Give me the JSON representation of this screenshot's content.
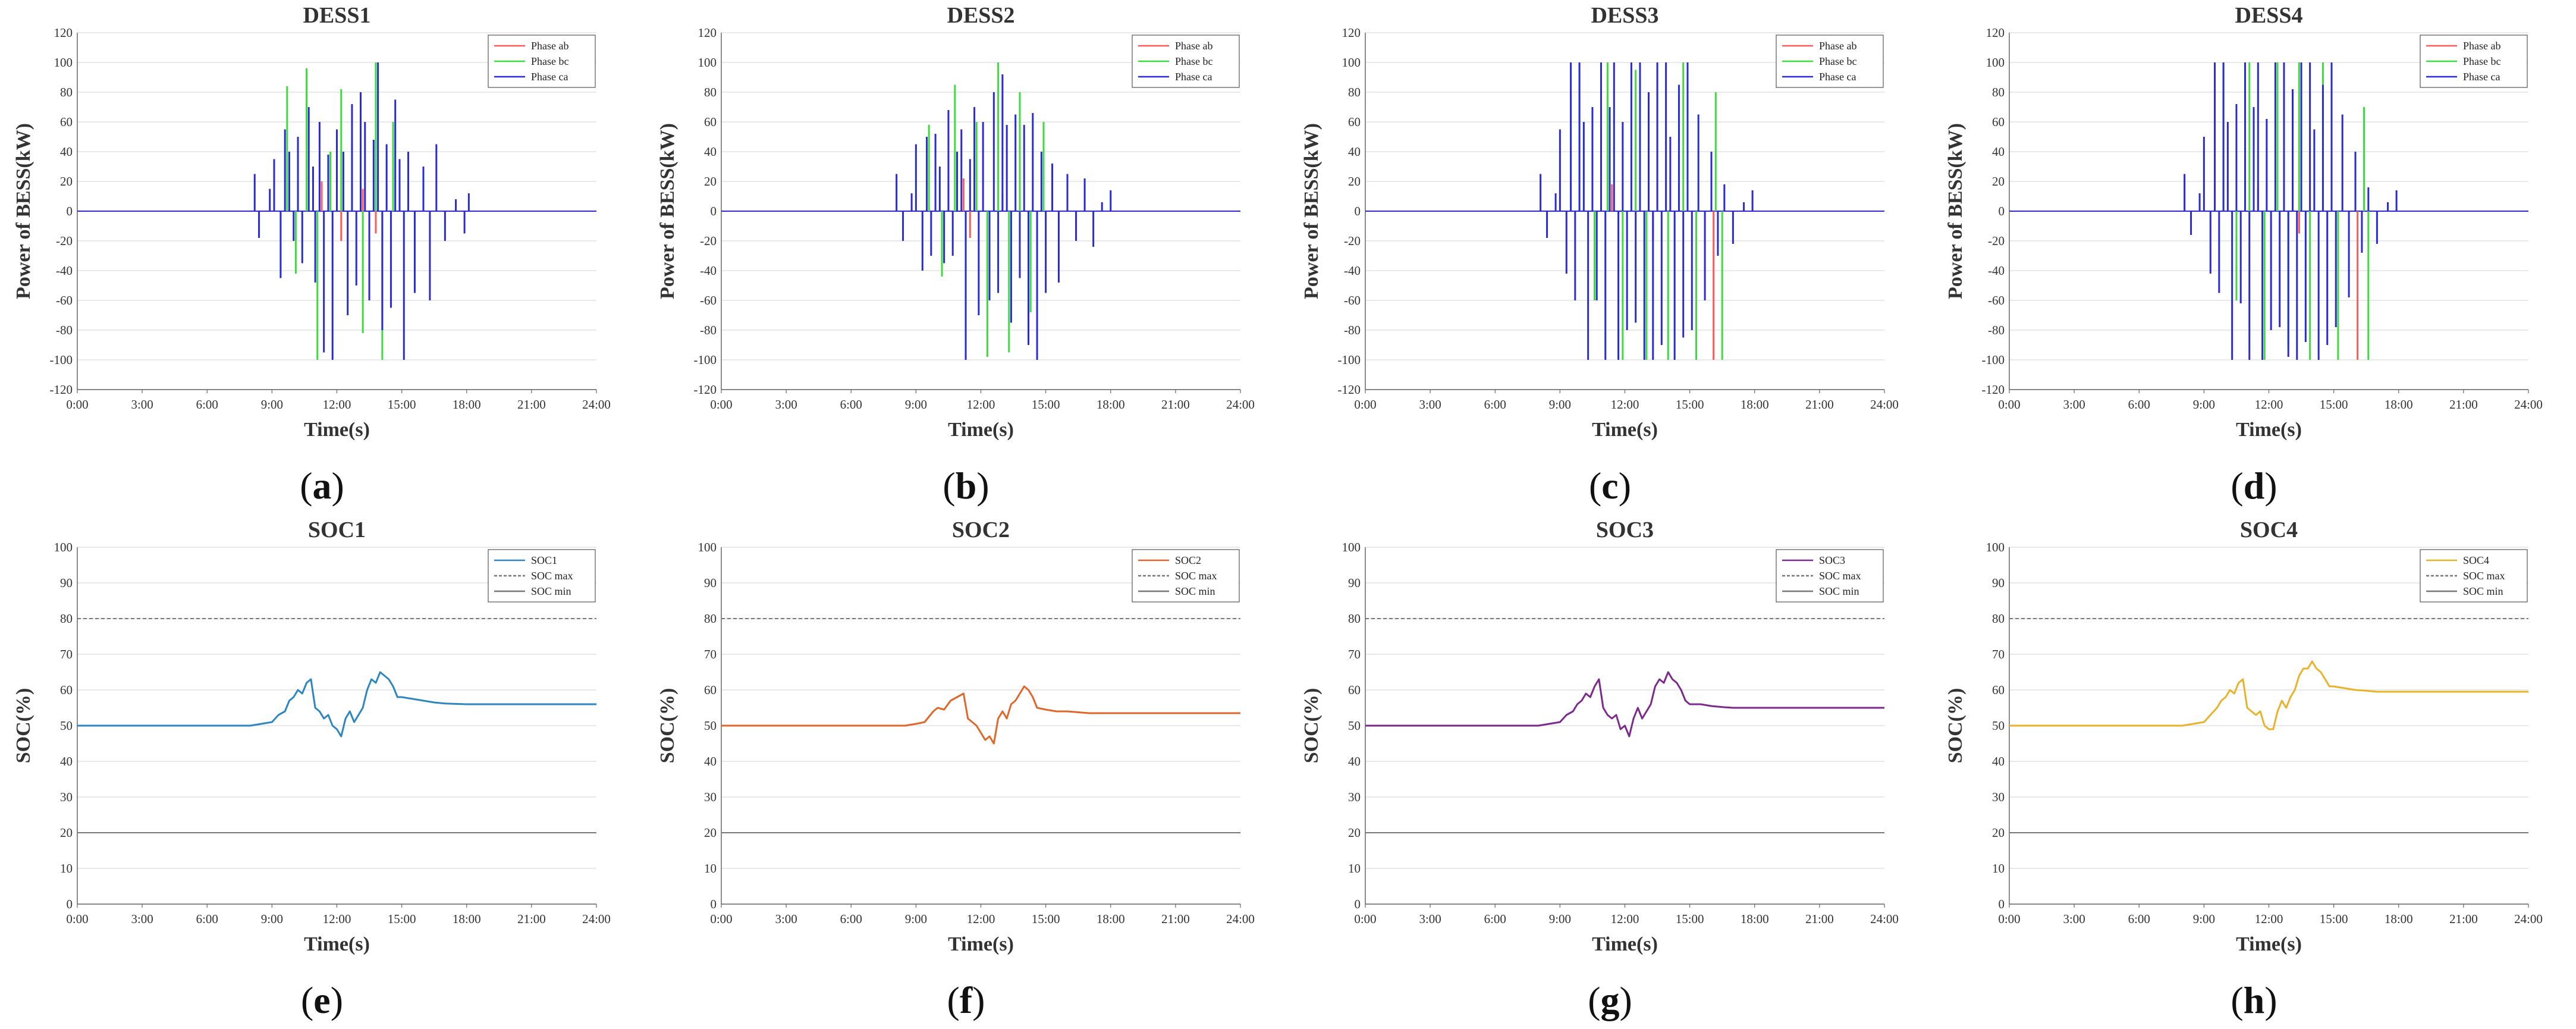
{
  "colors": {
    "phase_ab": "#ff5a5a",
    "phase_bc": "#3ddc3d",
    "phase_ca": "#2b2bd6",
    "soc1": "#2e86c1",
    "soc2": "#e0662a",
    "soc3": "#7b2a8c",
    "soc4": "#eab22a",
    "limit": "#777777",
    "grid": "#e2e2e2",
    "axis": "#666666"
  },
  "sublabels": [
    "(a)",
    "(b)",
    "(c)",
    "(d)",
    "(e)",
    "(f)",
    "(g)",
    "(h)"
  ],
  "chart_data": [
    {
      "type": "bar",
      "title": "DESS1",
      "xlabel": "Time(s)",
      "ylabel": "Power of BESS(kW)",
      "xlim": [
        0,
        24
      ],
      "ylim": [
        -120,
        120
      ],
      "ytick_step": 20,
      "xticks": [
        "0:00",
        "3:00",
        "6:00",
        "9:00",
        "12:00",
        "15:00",
        "18:00",
        "21:00",
        "24:00"
      ],
      "legend": [
        "Phase ab",
        "Phase bc",
        "Phase ca"
      ],
      "legend_position": "top-right",
      "series": [
        {
          "name": "Phase ab",
          "x": [
            11.3,
            12.2,
            13.2,
            13.8
          ],
          "values": [
            20,
            -20,
            15,
            -15
          ]
        },
        {
          "name": "Phase bc",
          "x": [
            9.7,
            10.1,
            10.6,
            11.1,
            11.7,
            12.2,
            12.7,
            13.2,
            13.8,
            14.1,
            14.6
          ],
          "values": [
            84,
            -42,
            96,
            -100,
            40,
            82,
            48,
            -82,
            100,
            -100,
            60
          ]
        },
        {
          "name": "Phase ca",
          "x": [
            8.2,
            8.4,
            8.9,
            9.1,
            9.4,
            9.6,
            9.8,
            10.0,
            10.2,
            10.4,
            10.7,
            10.9,
            11.0,
            11.2,
            11.4,
            11.6,
            11.8,
            12.0,
            12.3,
            12.5,
            12.7,
            12.9,
            13.1,
            13.3,
            13.5,
            13.7,
            13.9,
            14.1,
            14.3,
            14.5,
            14.7,
            14.9,
            15.1,
            15.3,
            15.6,
            16.0,
            16.3,
            16.6,
            17.0,
            17.5,
            17.9,
            18.1
          ],
          "values": [
            25,
            -18,
            15,
            35,
            -45,
            55,
            40,
            -20,
            50,
            -35,
            70,
            30,
            -48,
            60,
            -95,
            38,
            -100,
            55,
            40,
            -70,
            72,
            -50,
            80,
            60,
            -60,
            48,
            100,
            -80,
            45,
            -65,
            75,
            35,
            -100,
            40,
            -55,
            30,
            -60,
            45,
            -20,
            8,
            -15,
            12
          ]
        }
      ]
    },
    {
      "type": "bar",
      "title": "DESS2",
      "xlabel": "Time(s)",
      "ylabel": "Power of BESS(kW)",
      "xlim": [
        0,
        24
      ],
      "ylim": [
        -120,
        120
      ],
      "ytick_step": 20,
      "xticks": [
        "0:00",
        "3:00",
        "6:00",
        "9:00",
        "12:00",
        "15:00",
        "18:00",
        "21:00",
        "24:00"
      ],
      "legend": [
        "Phase ab",
        "Phase bc",
        "Phase ca"
      ],
      "legend_position": "top-right",
      "series": [
        {
          "name": "Phase ab",
          "x": [
            11.2,
            11.5,
            13.0
          ],
          "values": [
            22,
            -18,
            12
          ]
        },
        {
          "name": "Phase bc",
          "x": [
            9.6,
            10.2,
            10.8,
            11.3,
            11.8,
            12.3,
            12.8,
            13.3,
            13.8,
            14.3,
            14.9
          ],
          "values": [
            58,
            -44,
            85,
            -88,
            60,
            -98,
            100,
            -95,
            80,
            -68,
            60
          ]
        },
        {
          "name": "Phase ca",
          "x": [
            8.1,
            8.4,
            8.8,
            9.0,
            9.3,
            9.5,
            9.7,
            9.9,
            10.1,
            10.3,
            10.5,
            10.7,
            10.9,
            11.1,
            11.3,
            11.5,
            11.7,
            11.9,
            12.1,
            12.4,
            12.6,
            12.8,
            13.0,
            13.2,
            13.4,
            13.6,
            13.8,
            14.0,
            14.2,
            14.4,
            14.6,
            14.8,
            15.0,
            15.3,
            15.6,
            16.0,
            16.4,
            16.8,
            17.2,
            17.6,
            18.0
          ],
          "values": [
            25,
            -20,
            12,
            45,
            -40,
            50,
            -30,
            52,
            30,
            -35,
            68,
            -30,
            40,
            55,
            -100,
            35,
            70,
            -70,
            60,
            -60,
            80,
            -55,
            92,
            58,
            -75,
            65,
            -45,
            58,
            -90,
            66,
            -100,
            40,
            -55,
            32,
            -48,
            25,
            -20,
            22,
            -24,
            6,
            14
          ]
        }
      ]
    },
    {
      "type": "bar",
      "title": "DESS3",
      "xlabel": "Time(s)",
      "ylabel": "Power of BESS(kW)",
      "xlim": [
        0,
        24
      ],
      "ylim": [
        -120,
        120
      ],
      "ytick_step": 20,
      "xticks": [
        "0:00",
        "3:00",
        "6:00",
        "9:00",
        "12:00",
        "15:00",
        "18:00",
        "21:00",
        "24:00"
      ],
      "legend": [
        "Phase ab",
        "Phase bc",
        "Phase ca"
      ],
      "legend_position": "top-right",
      "series": [
        {
          "name": "Phase ab",
          "x": [
            11.4,
            13.3,
            16.1
          ],
          "values": [
            18,
            -20,
            -100
          ]
        },
        {
          "name": "Phase bc",
          "x": [
            9.9,
            10.6,
            11.2,
            11.9,
            12.5,
            13.0,
            13.5,
            14.0,
            14.7,
            15.3,
            16.2,
            16.5
          ],
          "values": [
            100,
            -60,
            100,
            -100,
            95,
            -100,
            100,
            -100,
            100,
            -100,
            80,
            -100
          ]
        },
        {
          "name": "Phase ca",
          "x": [
            8.1,
            8.4,
            8.8,
            9.0,
            9.3,
            9.5,
            9.7,
            9.9,
            10.1,
            10.3,
            10.5,
            10.7,
            10.9,
            11.1,
            11.3,
            11.5,
            11.7,
            11.9,
            12.1,
            12.3,
            12.5,
            12.7,
            12.9,
            13.1,
            13.3,
            13.5,
            13.7,
            13.9,
            14.1,
            14.3,
            14.5,
            14.7,
            14.9,
            15.1,
            15.4,
            15.7,
            16.0,
            16.3,
            16.6,
            17.0,
            17.5,
            17.9
          ],
          "values": [
            25,
            -18,
            12,
            55,
            -42,
            100,
            -60,
            100,
            60,
            -100,
            70,
            -60,
            100,
            -100,
            70,
            100,
            -100,
            60,
            -80,
            100,
            -75,
            100,
            -100,
            80,
            -100,
            100,
            -90,
            100,
            50,
            -100,
            85,
            -85,
            100,
            -80,
            65,
            -60,
            40,
            -30,
            18,
            -22,
            6,
            14
          ]
        }
      ]
    },
    {
      "type": "bar",
      "title": "DESS4",
      "xlabel": "Time(s)",
      "ylabel": "Power of BESS(kW)",
      "xlim": [
        0,
        24
      ],
      "ylim": [
        -120,
        120
      ],
      "ytick_step": 20,
      "xticks": [
        "0:00",
        "3:00",
        "6:00",
        "9:00",
        "12:00",
        "15:00",
        "18:00",
        "21:00",
        "24:00"
      ],
      "legend": [
        "Phase ab",
        "Phase bc",
        "Phase ca"
      ],
      "legend_position": "top-right",
      "series": [
        {
          "name": "Phase ab",
          "x": [
            11.5,
            13.4,
            16.1
          ],
          "values": [
            16,
            -15,
            -100
          ]
        },
        {
          "name": "Phase bc",
          "x": [
            9.9,
            10.5,
            11.1,
            11.8,
            12.4,
            12.9,
            13.4,
            13.9,
            14.5,
            15.2,
            16.4,
            16.6
          ],
          "values": [
            100,
            -60,
            100,
            -100,
            100,
            -90,
            100,
            -100,
            100,
            -100,
            70,
            -100
          ]
        },
        {
          "name": "Phase ca",
          "x": [
            8.1,
            8.4,
            8.8,
            9.0,
            9.3,
            9.5,
            9.7,
            9.9,
            10.1,
            10.3,
            10.5,
            10.7,
            10.9,
            11.1,
            11.3,
            11.5,
            11.7,
            11.9,
            12.1,
            12.3,
            12.5,
            12.7,
            12.9,
            13.1,
            13.3,
            13.5,
            13.7,
            13.9,
            14.1,
            14.3,
            14.5,
            14.7,
            14.9,
            15.1,
            15.4,
            15.7,
            16.0,
            16.3,
            16.6,
            17.0,
            17.5,
            17.9
          ],
          "values": [
            25,
            -16,
            12,
            50,
            -42,
            100,
            -55,
            100,
            60,
            -100,
            72,
            -62,
            100,
            -100,
            70,
            100,
            -100,
            62,
            -80,
            100,
            -78,
            100,
            -98,
            82,
            -100,
            100,
            -88,
            100,
            55,
            -100,
            85,
            -90,
            100,
            -78,
            65,
            -58,
            40,
            -28,
            16,
            -22,
            6,
            14
          ]
        }
      ]
    },
    {
      "type": "line",
      "title": "SOC1",
      "xlabel": "Time(s)",
      "ylabel": "SOC(%)",
      "xlim": [
        0,
        24
      ],
      "ylim": [
        0,
        100
      ],
      "ytick_step": 10,
      "xticks": [
        "0:00",
        "3:00",
        "6:00",
        "9:00",
        "12:00",
        "15:00",
        "18:00",
        "21:00",
        "24:00"
      ],
      "legend": [
        "SOC1",
        "SOC max",
        "SOC min"
      ],
      "legend_position": "top-right",
      "soc_max": 80,
      "soc_min": 20,
      "series": [
        {
          "name": "SOC1",
          "x": [
            0,
            8.0,
            8.5,
            9.0,
            9.3,
            9.6,
            9.8,
            10.0,
            10.2,
            10.4,
            10.6,
            10.8,
            11.0,
            11.2,
            11.4,
            11.6,
            11.8,
            12.0,
            12.2,
            12.4,
            12.6,
            12.8,
            13.0,
            13.2,
            13.4,
            13.6,
            13.8,
            14.0,
            14.2,
            14.4,
            14.6,
            14.8,
            15.0,
            15.5,
            16.0,
            16.5,
            17.0,
            18.0,
            24.0
          ],
          "values": [
            50,
            50,
            50.5,
            51,
            53,
            54,
            57,
            58,
            60,
            59,
            62,
            63,
            55,
            54,
            52,
            53,
            50,
            49,
            47,
            52,
            54,
            51,
            53,
            55,
            60,
            63,
            62,
            65,
            64,
            63,
            61,
            58,
            58,
            57.5,
            57,
            56.5,
            56.2,
            56,
            56
          ]
        }
      ]
    },
    {
      "type": "line",
      "title": "SOC2",
      "xlabel": "Time(s)",
      "ylabel": "SOC(%)",
      "xlim": [
        0,
        24
      ],
      "ylim": [
        0,
        100
      ],
      "ytick_step": 10,
      "xticks": [
        "0:00",
        "3:00",
        "6:00",
        "9:00",
        "12:00",
        "15:00",
        "18:00",
        "21:00",
        "24:00"
      ],
      "legend": [
        "SOC2",
        "SOC max",
        "SOC min"
      ],
      "legend_position": "top-right",
      "soc_max": 80,
      "soc_min": 20,
      "series": [
        {
          "name": "SOC2",
          "x": [
            0,
            8.5,
            9.0,
            9.4,
            9.8,
            10.0,
            10.3,
            10.6,
            10.9,
            11.2,
            11.4,
            11.6,
            11.8,
            12.0,
            12.2,
            12.4,
            12.6,
            12.8,
            13.0,
            13.2,
            13.4,
            13.6,
            13.8,
            14.0,
            14.2,
            14.4,
            14.6,
            15.0,
            15.5,
            16.0,
            17.0,
            18.0,
            24.0
          ],
          "values": [
            50,
            50,
            50.5,
            51,
            54,
            55,
            54.5,
            57,
            58,
            59,
            52,
            51,
            50,
            48,
            46,
            47,
            45,
            52,
            54,
            52,
            56,
            57,
            59,
            61,
            60,
            58,
            55,
            54.5,
            54,
            54,
            53.5,
            53.5,
            53.5
          ]
        }
      ]
    },
    {
      "type": "line",
      "title": "SOC3",
      "xlabel": "Time(s)",
      "ylabel": "SOC(%)",
      "xlim": [
        0,
        24
      ],
      "ylim": [
        0,
        100
      ],
      "ytick_step": 10,
      "xticks": [
        "0:00",
        "3:00",
        "6:00",
        "9:00",
        "12:00",
        "15:00",
        "18:00",
        "21:00",
        "24:00"
      ],
      "legend": [
        "SOC3",
        "SOC max",
        "SOC min"
      ],
      "legend_position": "top-right",
      "soc_max": 80,
      "soc_min": 20,
      "series": [
        {
          "name": "SOC3",
          "x": [
            0,
            8.0,
            8.5,
            9.0,
            9.3,
            9.6,
            9.8,
            10.0,
            10.2,
            10.4,
            10.6,
            10.8,
            11.0,
            11.2,
            11.4,
            11.6,
            11.8,
            12.0,
            12.2,
            12.4,
            12.6,
            12.8,
            13.0,
            13.2,
            13.4,
            13.6,
            13.8,
            14.0,
            14.2,
            14.4,
            14.6,
            14.8,
            15.0,
            15.5,
            16.0,
            16.5,
            17.0,
            18.0,
            24.0
          ],
          "values": [
            50,
            50,
            50.5,
            51,
            53,
            54,
            56,
            57,
            59,
            58,
            61,
            63,
            55,
            53,
            52,
            53,
            49,
            50,
            47,
            52,
            55,
            52,
            54,
            56,
            61,
            63,
            62,
            65,
            63,
            62,
            60,
            57,
            56,
            56,
            55.5,
            55.2,
            55,
            55,
            55
          ]
        }
      ]
    },
    {
      "type": "line",
      "title": "SOC4",
      "xlabel": "Time(s)",
      "ylabel": "SOC(%)",
      "xlim": [
        0,
        24
      ],
      "ylim": [
        0,
        100
      ],
      "ytick_step": 10,
      "xticks": [
        "0:00",
        "3:00",
        "6:00",
        "9:00",
        "12:00",
        "15:00",
        "18:00",
        "21:00",
        "24:00"
      ],
      "legend": [
        "SOC4",
        "SOC max",
        "SOC min"
      ],
      "legend_position": "top-right",
      "soc_max": 80,
      "soc_min": 20,
      "series": [
        {
          "name": "SOC4",
          "x": [
            0,
            8.0,
            8.5,
            9.0,
            9.3,
            9.6,
            9.8,
            10.0,
            10.2,
            10.4,
            10.6,
            10.8,
            11.0,
            11.2,
            11.4,
            11.6,
            11.8,
            12.0,
            12.2,
            12.4,
            12.6,
            12.8,
            13.0,
            13.2,
            13.4,
            13.6,
            13.8,
            14.0,
            14.2,
            14.4,
            14.6,
            14.8,
            15.0,
            15.5,
            16.0,
            16.5,
            17.0,
            18.0,
            24.0
          ],
          "values": [
            50,
            50,
            50.5,
            51,
            53,
            55,
            57,
            58,
            60,
            59,
            62,
            63,
            55,
            54,
            53,
            54,
            50,
            49,
            49,
            54,
            57,
            55,
            58,
            60,
            64,
            66,
            66,
            68,
            66,
            65,
            63,
            61,
            61,
            60.5,
            60,
            59.8,
            59.5,
            59.5,
            59.5
          ]
        }
      ]
    }
  ]
}
